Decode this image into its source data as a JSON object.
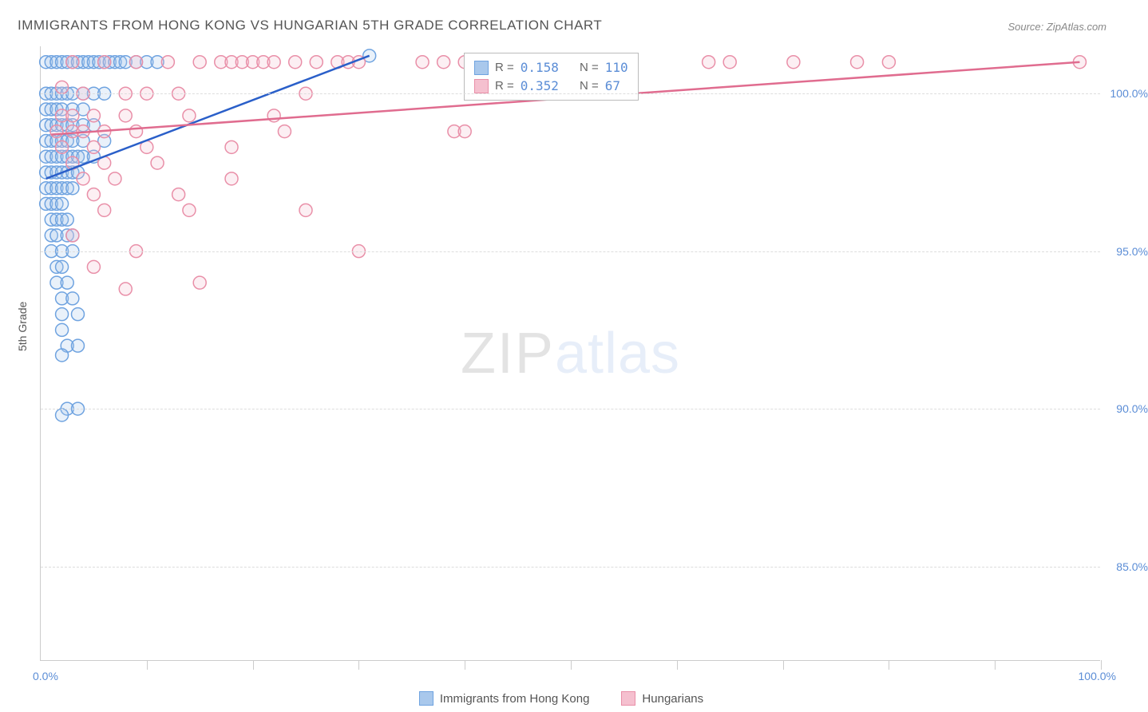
{
  "title": "IMMIGRANTS FROM HONG KONG VS HUNGARIAN 5TH GRADE CORRELATION CHART",
  "source": "Source: ZipAtlas.com",
  "ylabel": "5th Grade",
  "watermark": {
    "part1": "ZIP",
    "part2": "atlas"
  },
  "chart": {
    "type": "scatter",
    "background_color": "#ffffff",
    "grid_color": "#dddddd",
    "border_color": "#cccccc",
    "xlim": [
      0,
      100
    ],
    "ylim": [
      82,
      101.5
    ],
    "xtick_positions": [
      0,
      10,
      20,
      30,
      40,
      50,
      60,
      70,
      80,
      90,
      100
    ],
    "xtick_labels_shown": {
      "0": "0.0%",
      "100": "100.0%"
    },
    "ytick_positions": [
      85,
      90,
      95,
      100
    ],
    "ytick_labels": {
      "85": "85.0%",
      "90": "90.0%",
      "95": "95.0%",
      "100": "100.0%"
    },
    "marker_radius": 8,
    "marker_stroke_width": 1.5,
    "marker_fill_opacity": 0.25,
    "series": [
      {
        "name": "Immigrants from Hong Kong",
        "key": "hk",
        "color_stroke": "#6fa3e0",
        "color_fill": "#a9c8ec",
        "R": "0.158",
        "N": "110",
        "trend": {
          "x1": 0.5,
          "y1": 97.3,
          "x2": 31,
          "y2": 101.2
        },
        "points": [
          [
            0.5,
            101.0
          ],
          [
            1.0,
            101.0
          ],
          [
            1.5,
            101.0
          ],
          [
            2.0,
            101.0
          ],
          [
            2.5,
            101.0
          ],
          [
            3.0,
            101.0
          ],
          [
            3.5,
            101.0
          ],
          [
            4.0,
            101.0
          ],
          [
            4.5,
            101.0
          ],
          [
            5.0,
            101.0
          ],
          [
            5.5,
            101.0
          ],
          [
            6.0,
            101.0
          ],
          [
            6.5,
            101.0
          ],
          [
            7.0,
            101.0
          ],
          [
            7.5,
            101.0
          ],
          [
            8.0,
            101.0
          ],
          [
            9.0,
            101.0
          ],
          [
            10.0,
            101.0
          ],
          [
            11.0,
            101.0
          ],
          [
            31.0,
            101.2
          ],
          [
            0.5,
            100.0
          ],
          [
            1.0,
            100.0
          ],
          [
            1.5,
            100.0
          ],
          [
            2.0,
            100.0
          ],
          [
            2.5,
            100.0
          ],
          [
            3.0,
            100.0
          ],
          [
            4.0,
            100.0
          ],
          [
            5.0,
            100.0
          ],
          [
            6.0,
            100.0
          ],
          [
            0.5,
            99.5
          ],
          [
            1.0,
            99.5
          ],
          [
            1.5,
            99.5
          ],
          [
            2.0,
            99.5
          ],
          [
            3.0,
            99.5
          ],
          [
            4.0,
            99.5
          ],
          [
            0.5,
            99.0
          ],
          [
            1.0,
            99.0
          ],
          [
            1.5,
            99.0
          ],
          [
            2.0,
            99.0
          ],
          [
            2.5,
            99.0
          ],
          [
            3.0,
            99.0
          ],
          [
            4.0,
            99.0
          ],
          [
            5.0,
            99.0
          ],
          [
            0.5,
            98.5
          ],
          [
            1.0,
            98.5
          ],
          [
            1.5,
            98.5
          ],
          [
            2.0,
            98.5
          ],
          [
            2.5,
            98.5
          ],
          [
            3.0,
            98.5
          ],
          [
            4.0,
            98.5
          ],
          [
            6.0,
            98.5
          ],
          [
            0.5,
            98.0
          ],
          [
            1.0,
            98.0
          ],
          [
            1.5,
            98.0
          ],
          [
            2.0,
            98.0
          ],
          [
            2.5,
            98.0
          ],
          [
            3.0,
            98.0
          ],
          [
            3.5,
            98.0
          ],
          [
            4.0,
            98.0
          ],
          [
            5.0,
            98.0
          ],
          [
            0.5,
            97.5
          ],
          [
            1.0,
            97.5
          ],
          [
            1.5,
            97.5
          ],
          [
            2.0,
            97.5
          ],
          [
            2.5,
            97.5
          ],
          [
            3.0,
            97.5
          ],
          [
            3.5,
            97.5
          ],
          [
            0.5,
            97.0
          ],
          [
            1.0,
            97.0
          ],
          [
            1.5,
            97.0
          ],
          [
            2.0,
            97.0
          ],
          [
            2.5,
            97.0
          ],
          [
            3.0,
            97.0
          ],
          [
            0.5,
            96.5
          ],
          [
            1.0,
            96.5
          ],
          [
            1.5,
            96.5
          ],
          [
            2.0,
            96.5
          ],
          [
            1.0,
            96.0
          ],
          [
            1.5,
            96.0
          ],
          [
            2.0,
            96.0
          ],
          [
            2.5,
            96.0
          ],
          [
            1.0,
            95.5
          ],
          [
            1.5,
            95.5
          ],
          [
            2.5,
            95.5
          ],
          [
            3.0,
            95.5
          ],
          [
            1.0,
            95.0
          ],
          [
            2.0,
            95.0
          ],
          [
            3.0,
            95.0
          ],
          [
            1.5,
            94.5
          ],
          [
            2.0,
            94.5
          ],
          [
            1.5,
            94.0
          ],
          [
            2.5,
            94.0
          ],
          [
            2.0,
            93.5
          ],
          [
            3.0,
            93.5
          ],
          [
            2.0,
            93.0
          ],
          [
            3.5,
            93.0
          ],
          [
            2.0,
            92.5
          ],
          [
            2.5,
            92.0
          ],
          [
            3.5,
            92.0
          ],
          [
            2.0,
            91.7
          ],
          [
            2.5,
            90.0
          ],
          [
            3.5,
            90.0
          ],
          [
            2.0,
            89.8
          ]
        ]
      },
      {
        "name": "Hungarians",
        "key": "hu",
        "color_stroke": "#e98fa8",
        "color_fill": "#f5c0cf",
        "R": "0.352",
        "N": "67",
        "trend": {
          "x1": 1,
          "y1": 98.7,
          "x2": 98,
          "y2": 101.0
        },
        "points": [
          [
            3,
            101.0
          ],
          [
            6,
            101.0
          ],
          [
            9,
            101.0
          ],
          [
            12,
            101.0
          ],
          [
            15,
            101.0
          ],
          [
            17,
            101.0
          ],
          [
            18,
            101.0
          ],
          [
            19,
            101.0
          ],
          [
            20,
            101.0
          ],
          [
            21,
            101.0
          ],
          [
            22,
            101.0
          ],
          [
            24,
            101.0
          ],
          [
            26,
            101.0
          ],
          [
            28,
            101.0
          ],
          [
            29,
            101.0
          ],
          [
            30,
            101.0
          ],
          [
            36,
            101.0
          ],
          [
            38,
            101.0
          ],
          [
            40,
            101.0
          ],
          [
            63,
            101.0
          ],
          [
            65,
            101.0
          ],
          [
            71,
            101.0
          ],
          [
            77,
            101.0
          ],
          [
            80,
            101.0
          ],
          [
            98,
            101.0
          ],
          [
            2,
            100.2
          ],
          [
            4,
            100.0
          ],
          [
            8,
            100.0
          ],
          [
            10,
            100.0
          ],
          [
            13,
            100.0
          ],
          [
            25,
            100.0
          ],
          [
            2,
            99.3
          ],
          [
            3,
            99.3
          ],
          [
            5,
            99.3
          ],
          [
            8,
            99.3
          ],
          [
            14,
            99.3
          ],
          [
            22,
            99.3
          ],
          [
            1.5,
            98.8
          ],
          [
            3,
            98.8
          ],
          [
            4,
            98.8
          ],
          [
            6,
            98.8
          ],
          [
            9,
            98.8
          ],
          [
            23,
            98.8
          ],
          [
            39,
            98.8
          ],
          [
            40,
            98.8
          ],
          [
            2,
            98.3
          ],
          [
            5,
            98.3
          ],
          [
            10,
            98.3
          ],
          [
            18,
            98.3
          ],
          [
            3,
            97.8
          ],
          [
            6,
            97.8
          ],
          [
            11,
            97.8
          ],
          [
            4,
            97.3
          ],
          [
            7,
            97.3
          ],
          [
            18,
            97.3
          ],
          [
            5,
            96.8
          ],
          [
            13,
            96.8
          ],
          [
            6,
            96.3
          ],
          [
            14,
            96.3
          ],
          [
            25,
            96.3
          ],
          [
            3,
            95.5
          ],
          [
            9,
            95.0
          ],
          [
            30,
            95.0
          ],
          [
            5,
            94.5
          ],
          [
            15,
            94.0
          ],
          [
            8,
            93.8
          ]
        ]
      }
    ]
  },
  "legend_top": {
    "rows": [
      {
        "swatch_fill": "#a9c8ec",
        "swatch_stroke": "#6fa3e0",
        "r_label": "R =",
        "r_val": "0.158",
        "n_label": "N =",
        "n_val": "110"
      },
      {
        "swatch_fill": "#f5c0cf",
        "swatch_stroke": "#e98fa8",
        "r_label": "R =",
        "r_val": "0.352",
        "n_label": "N =",
        "n_val": " 67"
      }
    ]
  },
  "legend_bottom": {
    "items": [
      {
        "swatch_fill": "#a9c8ec",
        "swatch_stroke": "#6fa3e0",
        "label": "Immigrants from Hong Kong"
      },
      {
        "swatch_fill": "#f5c0cf",
        "swatch_stroke": "#e98fa8",
        "label": "Hungarians"
      }
    ]
  }
}
